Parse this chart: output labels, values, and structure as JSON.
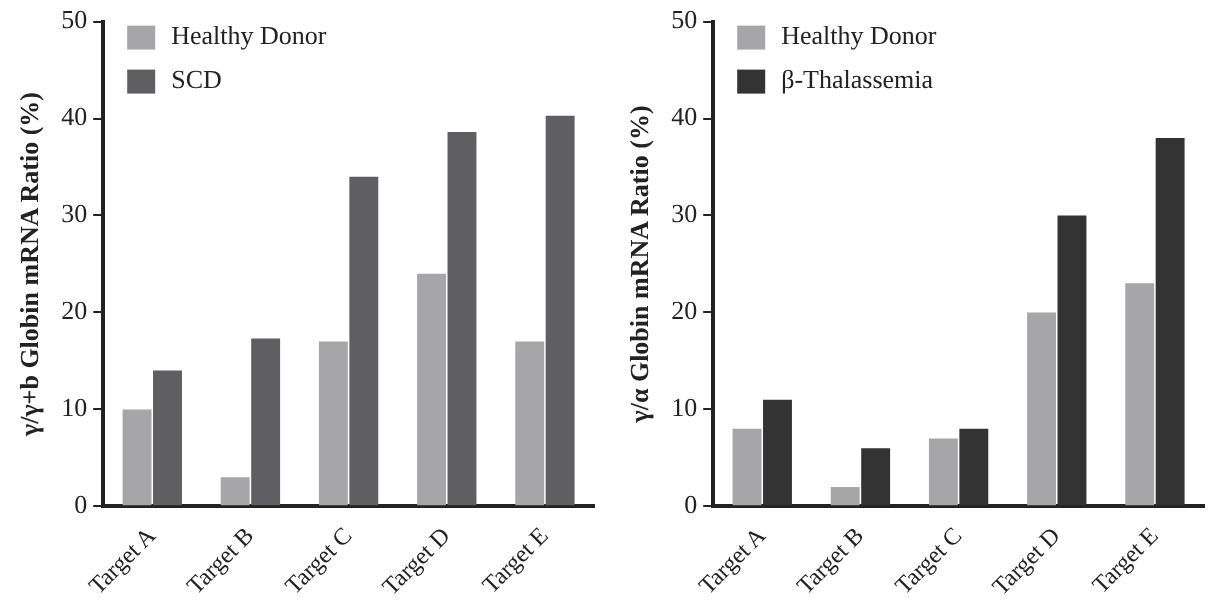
{
  "chart_data": [
    {
      "type": "bar",
      "ylabel": "γ/γ+b Globin mRNA Ratio (%)",
      "categories": [
        "Target A",
        "Target B",
        "Target C",
        "Target D",
        "Target E"
      ],
      "series": [
        {
          "name": "Healthy Donor",
          "color": "#a6a6a8",
          "values": [
            10,
            3,
            17,
            24,
            17
          ]
        },
        {
          "name": "SCD",
          "color": "#5f5f61",
          "values": [
            14,
            17.3,
            34,
            38.6,
            40.3
          ]
        }
      ],
      "ylim": [
        0,
        50
      ],
      "yticks": [
        0,
        10,
        20,
        30,
        40,
        50
      ],
      "grid": false,
      "legend": "top left"
    },
    {
      "type": "bar",
      "ylabel": "γ/α Globin mRNA Ratio (%)",
      "categories": [
        "Target A",
        "Target B",
        "Target C",
        "Target D",
        "Target E"
      ],
      "series": [
        {
          "name": "Healthy Donor",
          "color": "#a6a6a8",
          "values": [
            8,
            2,
            7,
            20,
            23
          ]
        },
        {
          "name": "β-Thalassemia",
          "color": "#333333",
          "values": [
            11,
            6,
            8,
            30,
            38
          ]
        }
      ],
      "ylim": [
        0,
        50
      ],
      "yticks": [
        0,
        10,
        20,
        30,
        40,
        50
      ],
      "grid": false,
      "legend": "top left"
    }
  ]
}
